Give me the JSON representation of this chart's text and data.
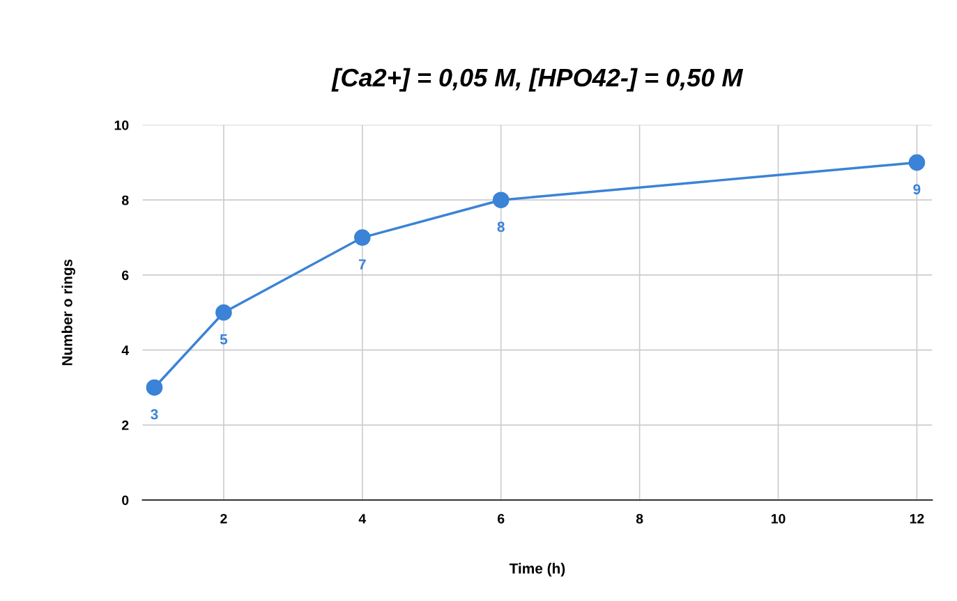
{
  "chart_data": {
    "type": "line",
    "title": "[Ca2+] = 0,05 M, [HPO42-] = 0,50 M",
    "xlabel": "Time (h)",
    "ylabel": "Number o rings",
    "x": [
      1,
      2,
      4,
      6,
      12
    ],
    "series": [
      {
        "color": "#3a83d6",
        "values": [
          3,
          5,
          7,
          8,
          9
        ]
      }
    ],
    "xlim": [
      0.83,
      12.22
    ],
    "xticks": [
      2,
      4,
      6,
      8,
      10,
      12
    ],
    "ylim": [
      0,
      10
    ],
    "yticks": [
      0,
      2,
      4,
      6,
      8,
      10
    ],
    "grid": true,
    "marker": "circle",
    "line_style": "solid",
    "data_labels": true
  }
}
